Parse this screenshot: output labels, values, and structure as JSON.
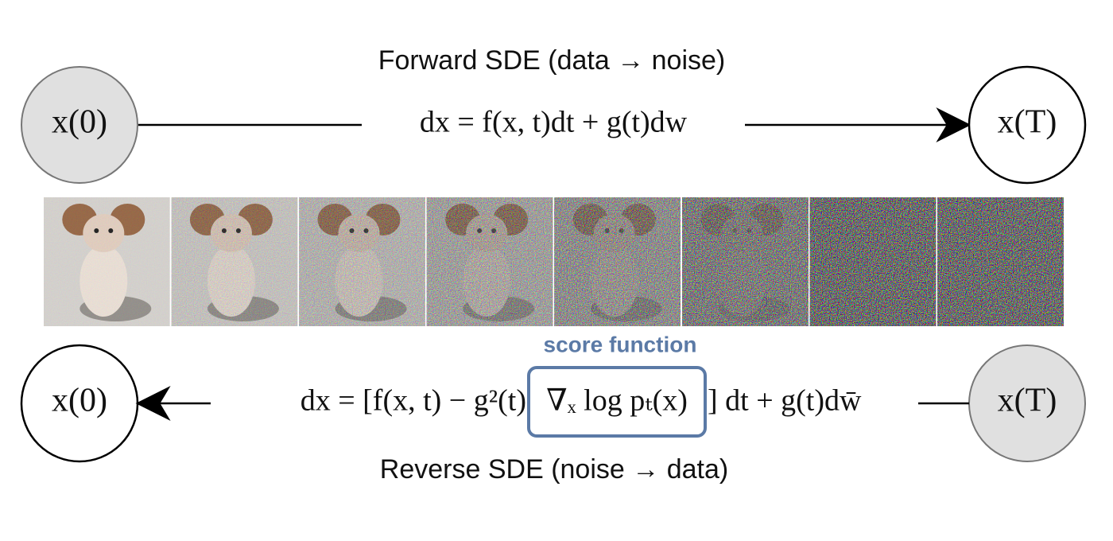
{
  "forward_label": "Forward SDE (data → noise)",
  "forward_equation": "dx = f(x, t)dt + g(t)dw",
  "reverse_label": "Reverse SDE (noise → data)",
  "reverse_equation": {
    "before": "dx = [f(x, t) − g²(t)",
    "score": "∇ₓ log pₜ(x)",
    "after": "] dt + g(t)dw̄"
  },
  "score_label": "score function",
  "nodes": [
    {
      "label": "x(0)"
    },
    {
      "label": "x(T)"
    },
    {
      "label": "x(0)"
    },
    {
      "label": "x(T)"
    }
  ]
}
